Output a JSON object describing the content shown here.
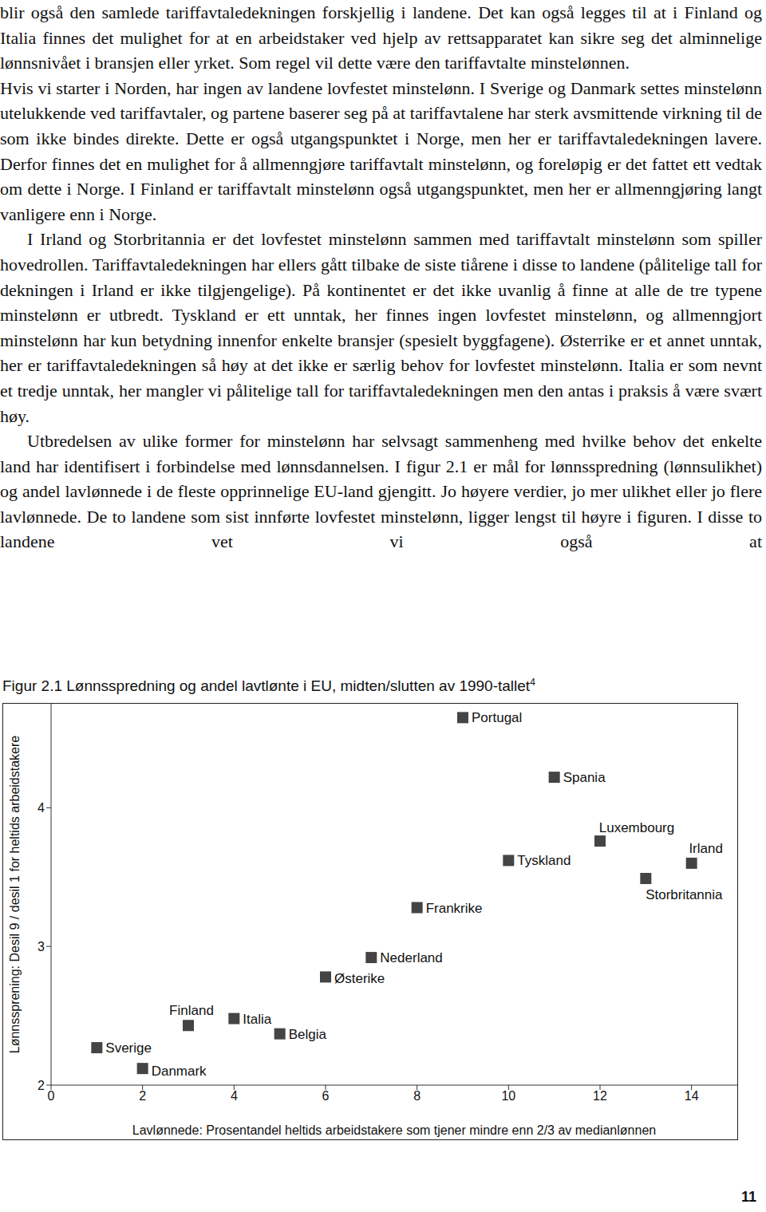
{
  "paragraphs": [
    "blir også den samlede tariffavtaledekningen forskjellig i landene. Det kan også legges til at i Finland og Italia finnes det mulighet for at en arbeidstaker ved hjelp av rettsapparatet kan sikre seg det alminnelige lønnsnivået i bransjen eller yrket. Som regel vil dette være den tariffavtalte minstelønnen.",
    "Hvis vi starter i Norden, har ingen av landene lovfestet minstelønn. I Sverige og Danmark settes minstelønn utelukkende ved tariffavtaler, og partene baserer seg på at tariffavtalene har sterk avsmittende virkning til de som ikke bindes direkte. Dette er også utgangspunktet i Norge, men her er tariffavtaledekningen lavere. Derfor finnes det en mulighet for å allmenngjøre tariffavtalt minstelønn, og foreløpig er det fattet ett vedtak om dette i Norge. I Finland er tariffavtalt minstelønn også utgangspunktet, men her er allmenngjøring langt vanligere enn i Norge.",
    "I Irland og Storbritannia er det lovfestet minstelønn sammen med tariffavtalt minstelønn som spiller hovedrollen. Tariffavtaledekningen har ellers gått tilbake de siste tiårene i disse to landene (pålitelige tall for dekningen i Irland er ikke tilgjengelige). På kontinentet er det ikke uvanlig å finne at alle de tre typene minstelønn er utbredt. Tyskland er ett unntak, her finnes ingen lovfestet minstelønn, og allmenngjort minstelønn har kun betydning innenfor enkelte bransjer (spesielt byggfagene). Østerrike er et annet unntak, her er tariffavtaledekningen så høy at det ikke er særlig behov for lovfestet minstelønn. Italia er som nevnt et tredje unntak, her mangler vi pålitelige tall for tariffavtaledekningen men den antas i praksis å være svært høy.",
    "Utbredelsen av ulike former for minstelønn har selvsagt sammenheng med hvilke behov det enkelte land har identifisert i forbindelse med lønnsdannelsen. I figur 2.1 er mål for lønnsspredning (lønnsulikhet) og andel lavlønnede i de fleste opprinnelige EU-land gjengitt. Jo høyere verdier, jo mer ulikhet eller jo flere lavlønnede. De to landene som sist innførte lovfestet minstelønn, ligger lengst til høyre i figuren. I disse to landene vet vi også at"
  ],
  "chart_data": {
    "type": "scatter",
    "title": "Figur 2.1 Lønnsspredning og andel lavtlønte i EU, midten/slutten av 1990-tallet",
    "title_footnote": "4",
    "x_label": "Lavlønnede: Prosentandel heltids arbeidstakere som tjener mindre enn 2/3 av medianlønnen",
    "y_label": "Lønnssprening: Desil 9 / desil 1 for heltids arbeidstakere",
    "labels": [
      "Sverige",
      "Danmark",
      "Finland",
      "Italia",
      "Belgia",
      "Østerike",
      "Nederland",
      "Frankrike",
      "Portugal",
      "Tyskland",
      "Spania",
      "Luxembourg",
      "Storbritannia",
      "Irland"
    ],
    "x": [
      1,
      2,
      3,
      4,
      5,
      6,
      7,
      8,
      9,
      10,
      11,
      12,
      13,
      14
    ],
    "values": [
      2.27,
      2.12,
      2.43,
      2.48,
      2.37,
      2.78,
      2.92,
      3.28,
      4.65,
      3.62,
      4.22,
      3.76,
      3.49,
      3.6
    ],
    "color": "#444444",
    "marker": "square",
    "xlim": [
      0,
      15
    ],
    "xticks": [
      0,
      2,
      4,
      6,
      8,
      10,
      12,
      14
    ],
    "ylim": [
      2,
      4.75
    ],
    "yticks": [
      2,
      3,
      4
    ],
    "grid": false
  },
  "page_number": "11"
}
